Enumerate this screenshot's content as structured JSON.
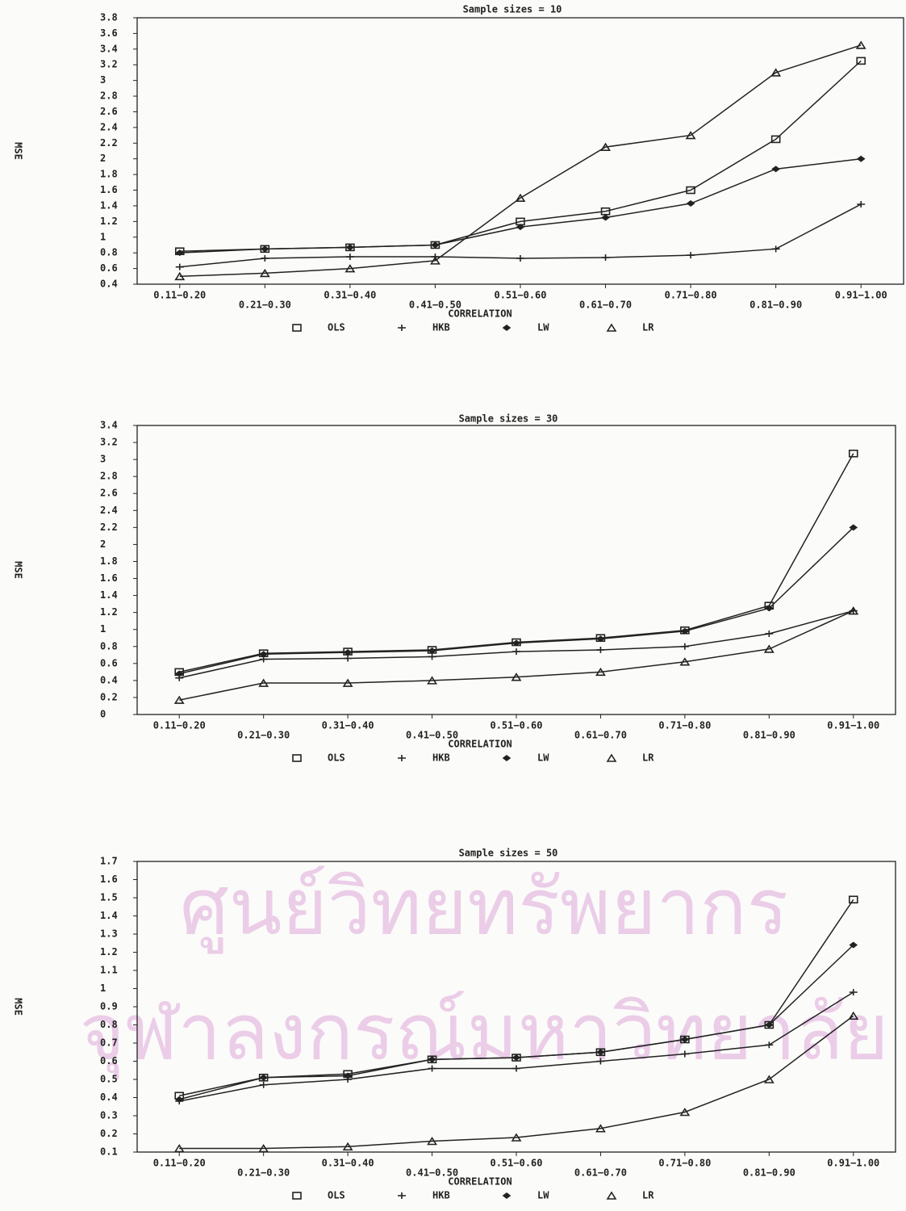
{
  "watermark": [
    "ศูนย์วิทยทรัพยากร",
    "จุฬาลงกรณ์มหาวิทยาลัย"
  ],
  "chart_data": [
    {
      "type": "line",
      "title": "Sample sizes = 10",
      "x_label": "CORRELATION",
      "y_label": "MSE",
      "categories": [
        "0.11−0.20",
        "0.21−0.30",
        "0.31−0.40",
        "0.41−0.50",
        "0.51−0.60",
        "0.61−0.70",
        "0.71−0.80",
        "0.81−0.90",
        "0.91−1.00"
      ],
      "ylim": [
        0.4,
        3.8
      ],
      "yticks": [
        0.4,
        0.6,
        0.8,
        1,
        1.2,
        1.4,
        1.6,
        1.8,
        2,
        2.2,
        2.4,
        2.6,
        2.8,
        3,
        3.2,
        3.4,
        3.6,
        3.8
      ],
      "series": [
        {
          "name": "OLS",
          "marker": "square",
          "color": "#222222",
          "values": [
            0.82,
            0.85,
            0.87,
            0.9,
            1.2,
            1.33,
            1.6,
            2.25,
            3.25
          ]
        },
        {
          "name": "HKB",
          "marker": "plus",
          "color": "#222222",
          "values": [
            0.62,
            0.73,
            0.75,
            0.75,
            0.73,
            0.74,
            0.77,
            0.85,
            1.42
          ]
        },
        {
          "name": "LW",
          "marker": "diamond",
          "color": "#222222",
          "values": [
            0.8,
            0.85,
            0.87,
            0.9,
            1.13,
            1.25,
            1.43,
            1.87,
            2.0
          ]
        },
        {
          "name": "LR",
          "marker": "triangle",
          "color": "#222222",
          "values": [
            0.5,
            0.54,
            0.6,
            0.7,
            1.5,
            2.15,
            2.3,
            3.1,
            3.45
          ]
        }
      ]
    },
    {
      "type": "line",
      "title": "Sample sizes = 30",
      "x_label": "CORRELATION",
      "y_label": "MSE",
      "categories": [
        "0.11−0.20",
        "0.21−0.30",
        "0.31−0.40",
        "0.41−0.50",
        "0.51−0.60",
        "0.61−0.70",
        "0.71−0.80",
        "0.81−0.90",
        "0.91−1.00"
      ],
      "ylim": [
        0,
        3.4
      ],
      "yticks": [
        0,
        0.2,
        0.4,
        0.6,
        0.8,
        1,
        1.2,
        1.4,
        1.6,
        1.8,
        2,
        2.2,
        2.4,
        2.6,
        2.8,
        3,
        3.2,
        3.4
      ],
      "series": [
        {
          "name": "OLS",
          "marker": "square",
          "color": "#222222",
          "values": [
            0.5,
            0.72,
            0.74,
            0.76,
            0.85,
            0.9,
            0.99,
            1.28,
            3.07
          ]
        },
        {
          "name": "HKB",
          "marker": "plus",
          "color": "#222222",
          "values": [
            0.43,
            0.65,
            0.66,
            0.68,
            0.74,
            0.76,
            0.8,
            0.95,
            1.22
          ]
        },
        {
          "name": "LW",
          "marker": "diamond",
          "color": "#222222",
          "values": [
            0.48,
            0.71,
            0.73,
            0.75,
            0.84,
            0.89,
            0.98,
            1.25,
            2.2
          ]
        },
        {
          "name": "LR",
          "marker": "triangle",
          "color": "#222222",
          "values": [
            0.17,
            0.37,
            0.37,
            0.4,
            0.44,
            0.5,
            0.62,
            0.77,
            1.22
          ]
        }
      ]
    },
    {
      "type": "line",
      "title": "Sample sizes = 50",
      "x_label": "CORRELATION",
      "y_label": "MSE",
      "categories": [
        "0.11−0.20",
        "0.21−0.30",
        "0.31−0.40",
        "0.41−0.50",
        "0.51−0.60",
        "0.61−0.70",
        "0.71−0.80",
        "0.81−0.90",
        "0.91−1.00"
      ],
      "ylim": [
        0.1,
        1.7
      ],
      "yticks": [
        0.1,
        0.2,
        0.3,
        0.4,
        0.5,
        0.6,
        0.7,
        0.8,
        0.9,
        1,
        1.1,
        1.2,
        1.3,
        1.4,
        1.5,
        1.6,
        1.7
      ],
      "series": [
        {
          "name": "OLS",
          "marker": "square",
          "color": "#222222",
          "values": [
            0.41,
            0.51,
            0.53,
            0.61,
            0.62,
            0.65,
            0.72,
            0.8,
            1.49
          ]
        },
        {
          "name": "HKB",
          "marker": "plus",
          "color": "#222222",
          "values": [
            0.38,
            0.47,
            0.5,
            0.56,
            0.56,
            0.6,
            0.64,
            0.69,
            0.98
          ]
        },
        {
          "name": "LW",
          "marker": "diamond",
          "color": "#222222",
          "values": [
            0.39,
            0.51,
            0.52,
            0.61,
            0.62,
            0.65,
            0.72,
            0.8,
            1.24
          ]
        },
        {
          "name": "LR",
          "marker": "triangle",
          "color": "#222222",
          "values": [
            0.12,
            0.12,
            0.13,
            0.16,
            0.18,
            0.23,
            0.32,
            0.5,
            0.85
          ]
        }
      ]
    }
  ]
}
